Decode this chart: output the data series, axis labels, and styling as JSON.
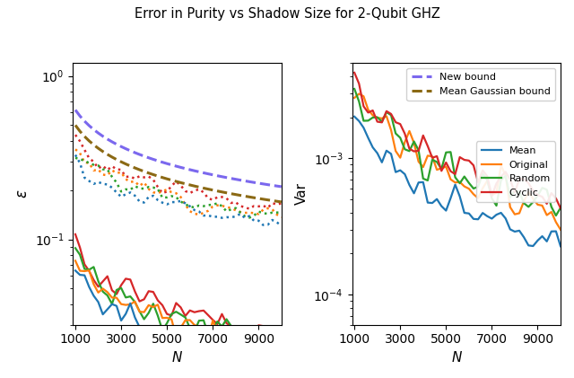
{
  "title": "Error in Purity vs Shadow Size for 2-Qubit GHZ",
  "colors": {
    "blue": "#1f77b4",
    "orange": "#ff7f0e",
    "green": "#2ca02c",
    "red": "#d62728",
    "purple": "#7b68ee",
    "brown": "#8B6914"
  },
  "left_xlabel": "N",
  "left_ylabel": "ε",
  "right_xlabel": "N",
  "right_ylabel": "Var",
  "legend_entries": [
    "New bound",
    "Mean Gaussian bound",
    "Mean",
    "Original",
    "Random",
    "Cyclic"
  ],
  "left_ylim": [
    0.03,
    1.2
  ],
  "right_ylim": [
    6e-05,
    0.005
  ],
  "xticks": [
    1000,
    3000,
    5000,
    7000,
    9000
  ]
}
